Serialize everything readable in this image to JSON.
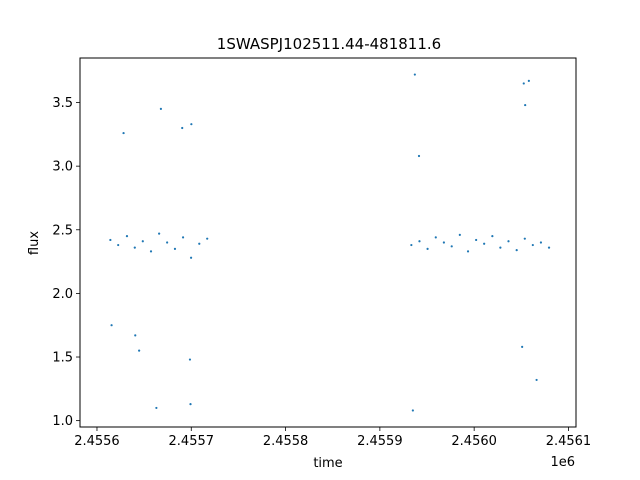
{
  "chart_data": {
    "type": "scatter",
    "title": "1SWASPJ102511.44-481811.6",
    "xlabel": "time",
    "ylabel": "flux",
    "x_offset_label": "1e6",
    "xlim": [
      2455582.0,
      2456108.0
    ],
    "ylim": [
      0.95,
      3.85
    ],
    "grid": false,
    "xticks": [
      2455600,
      2455700,
      2455800,
      2455900,
      2456000,
      2456100
    ],
    "xtick_labels": [
      "2.4556",
      "2.4557",
      "2.4558",
      "2.4559",
      "2.4560",
      "2.4561"
    ],
    "yticks": [
      1.0,
      1.5,
      2.0,
      2.5,
      3.0,
      3.5
    ],
    "ytick_labels": [
      "1.0",
      "1.5",
      "2.0",
      "2.5",
      "3.0",
      "3.5"
    ],
    "point_color": "#1f77b4",
    "series": [
      {
        "x": [
          2455614.2,
          2455622.5,
          2455631.8,
          2455640.1,
          2455648.6,
          2455657.3,
          2455665.9,
          2455674.4,
          2455682.7,
          2455691.3,
          2455699.8,
          2455708.5,
          2455716.9,
          2455615.5,
          2455628.2,
          2455644.7,
          2455667.8,
          2455690.4,
          2455698.6,
          2455699.2,
          2455700.1,
          2455640.6,
          2455663.0
        ],
        "y": [
          2.42,
          2.38,
          2.45,
          2.36,
          2.41,
          2.33,
          2.47,
          2.4,
          2.35,
          2.44,
          2.28,
          2.39,
          2.43,
          1.75,
          3.26,
          1.55,
          3.45,
          3.3,
          1.48,
          1.13,
          3.33,
          1.67,
          1.1
        ]
      },
      {
        "x": [
          2455933.4,
          2455942.0,
          2455950.6,
          2455959.3,
          2455967.9,
          2455976.2,
          2455984.8,
          2455993.5,
          2456002.1,
          2456010.6,
          2456019.3,
          2456027.8,
          2456036.4,
          2456045.1,
          2456053.7,
          2456062.2,
          2456070.8,
          2456079.4,
          2455935.0,
          2455937.1,
          2455941.5,
          2456052.6,
          2456054.1,
          2456058.0,
          2456050.9,
          2456066.2
        ],
        "y": [
          2.38,
          2.41,
          2.35,
          2.44,
          2.4,
          2.37,
          2.46,
          2.33,
          2.42,
          2.39,
          2.45,
          2.36,
          2.41,
          2.34,
          2.43,
          2.38,
          2.4,
          2.36,
          1.08,
          3.72,
          3.08,
          3.65,
          3.48,
          3.67,
          1.58,
          1.32
        ]
      }
    ]
  }
}
